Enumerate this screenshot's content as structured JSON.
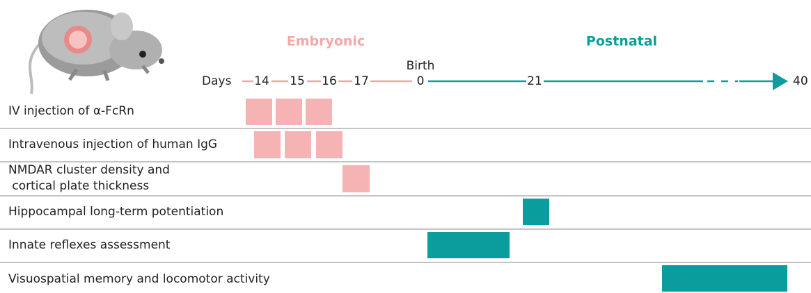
{
  "header": {
    "embryonic": "Embryonic",
    "postnatal": "Postnatal"
  },
  "timeline": {
    "label": "Days",
    "birth": "Birth",
    "ticks": [
      "14",
      "15",
      "16",
      "17",
      "0",
      "21",
      "40"
    ]
  },
  "rows": [
    {
      "label": [
        "IV injection of α-FcRn"
      ]
    },
    {
      "label": [
        "Intravenous injection of human IgG"
      ]
    },
    {
      "label": [
        "NMDAR cluster density and",
        " cortical plate thickness"
      ]
    },
    {
      "label": [
        "Hippocampal long-term potentiation"
      ]
    },
    {
      "label": [
        "Innate reflexes assessment"
      ]
    },
    {
      "label": [
        "Visuospatial memory and locomotor activity"
      ]
    }
  ]
}
